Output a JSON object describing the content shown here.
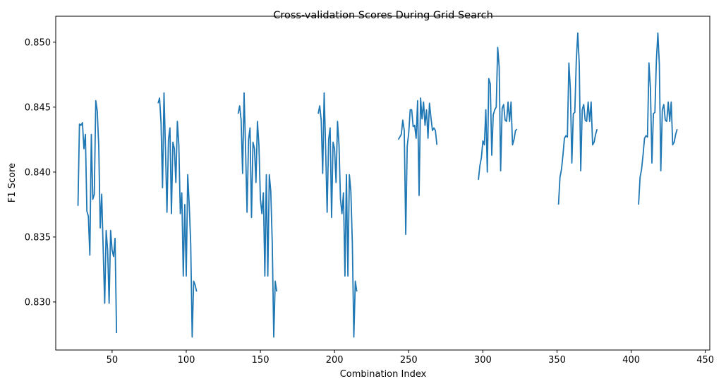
{
  "chart_data": {
    "type": "line",
    "title": "Cross-validation Scores During Grid Search",
    "xlabel": "Combination Index",
    "ylabel": "F1 Score",
    "xlim": [
      12,
      453
    ],
    "ylim": [
      0.8263,
      0.852
    ],
    "xticks": [
      50,
      100,
      150,
      200,
      250,
      300,
      350,
      400,
      450
    ],
    "yticks": [
      0.83,
      0.835,
      0.84,
      0.845,
      0.85
    ],
    "grid": false,
    "legend": "none",
    "colors": {
      "line": "#1f77b4"
    },
    "series": [
      {
        "segments": [
          {
            "x": [
              27,
              28,
              29,
              30,
              31,
              32,
              33,
              34,
              35,
              36,
              37,
              38,
              39,
              40,
              41,
              42,
              43,
              44,
              45,
              46,
              47,
              48,
              49,
              50,
              51,
              52,
              53
            ],
            "y": [
              0.8374,
              0.8437,
              0.8436,
              0.8438,
              0.8418,
              0.8429,
              0.837,
              0.8366,
              0.8336,
              0.8429,
              0.8379,
              0.8383,
              0.8455,
              0.8447,
              0.842,
              0.8357,
              0.8383,
              0.834,
              0.8299,
              0.8355,
              0.834,
              0.8299,
              0.8355,
              0.834,
              0.8335,
              0.8349,
              0.8276
            ]
          },
          {
            "x": [
              81,
              82,
              83,
              84,
              85,
              86,
              87,
              88,
              89,
              90,
              91,
              92,
              93,
              94,
              95,
              96,
              97,
              98,
              99,
              100,
              101,
              102,
              103,
              104,
              105,
              106,
              107
            ],
            "y": [
              0.8453,
              0.8457,
              0.8438,
              0.8388,
              0.8461,
              0.8418,
              0.8369,
              0.8425,
              0.8434,
              0.8368,
              0.8423,
              0.8418,
              0.8392,
              0.8439,
              0.8421,
              0.8368,
              0.8384,
              0.832,
              0.8375,
              0.832,
              0.8398,
              0.8375,
              0.8345,
              0.8273,
              0.8316,
              0.8313,
              0.8308
            ]
          },
          {
            "x": [
              135,
              136,
              137,
              138,
              139,
              140,
              141,
              142,
              143,
              144,
              145,
              146,
              147,
              148,
              149,
              150,
              151,
              152,
              153,
              154,
              155,
              156,
              157,
              158,
              159,
              160,
              161
            ],
            "y": [
              0.8445,
              0.8451,
              0.844,
              0.8399,
              0.8461,
              0.8418,
              0.8369,
              0.8425,
              0.8434,
              0.8365,
              0.8423,
              0.8418,
              0.8392,
              0.8439,
              0.8421,
              0.8379,
              0.8368,
              0.8384,
              0.832,
              0.8398,
              0.832,
              0.8398,
              0.8385,
              0.8345,
              0.8273,
              0.8316,
              0.8308
            ]
          },
          {
            "x": [
              189,
              190,
              191,
              192,
              193,
              194,
              195,
              196,
              197,
              198,
              199,
              200,
              201,
              202,
              203,
              204,
              205,
              206,
              207,
              208,
              209,
              210,
              211,
              212,
              213,
              214,
              215
            ],
            "y": [
              0.8445,
              0.8451,
              0.844,
              0.8399,
              0.8461,
              0.8418,
              0.8369,
              0.8425,
              0.8434,
              0.8365,
              0.8423,
              0.8418,
              0.8392,
              0.8439,
              0.8421,
              0.8379,
              0.8368,
              0.8384,
              0.832,
              0.8398,
              0.832,
              0.8398,
              0.8385,
              0.8345,
              0.8273,
              0.8316,
              0.8308
            ]
          },
          {
            "x": [
              243,
              244,
              245,
              246,
              247,
              248,
              249,
              250,
              251,
              252,
              253,
              254,
              255,
              256,
              257,
              258,
              259,
              260,
              261,
              262,
              263,
              264,
              265,
              266,
              267,
              268,
              269
            ],
            "y": [
              0.8425,
              0.8427,
              0.8429,
              0.844,
              0.8432,
              0.8352,
              0.842,
              0.843,
              0.8448,
              0.8448,
              0.8435,
              0.8436,
              0.8426,
              0.8455,
              0.8382,
              0.8457,
              0.8441,
              0.8454,
              0.8436,
              0.8448,
              0.8426,
              0.8453,
              0.8442,
              0.8432,
              0.8434,
              0.8432,
              0.8421
            ]
          },
          {
            "x": [
              297,
              298,
              299,
              300,
              301,
              302,
              303,
              304,
              305,
              306,
              307,
              308,
              309,
              310,
              311,
              312,
              313,
              314,
              315,
              316,
              317,
              318,
              319,
              320,
              321,
              322,
              323
            ],
            "y": [
              0.8394,
              0.8405,
              0.8411,
              0.8424,
              0.8421,
              0.8448,
              0.84,
              0.8472,
              0.8468,
              0.8413,
              0.8444,
              0.8448,
              0.845,
              0.8496,
              0.8481,
              0.8401,
              0.8449,
              0.8452,
              0.844,
              0.8439,
              0.8454,
              0.8439,
              0.8454,
              0.8421,
              0.8425,
              0.8432,
              0.8433
            ]
          },
          {
            "x": [
              351,
              352,
              353,
              354,
              355,
              356,
              357,
              358,
              359,
              360,
              361,
              362,
              363,
              364,
              365,
              366,
              367,
              368,
              369,
              370,
              371,
              372,
              373,
              374,
              375,
              376,
              377
            ],
            "y": [
              0.8375,
              0.8396,
              0.8402,
              0.8413,
              0.8426,
              0.8428,
              0.8427,
              0.8484,
              0.8464,
              0.8407,
              0.8445,
              0.8446,
              0.8486,
              0.8507,
              0.8483,
              0.8401,
              0.8448,
              0.8452,
              0.844,
              0.8439,
              0.8454,
              0.8439,
              0.8454,
              0.8421,
              0.8423,
              0.8429,
              0.8433
            ]
          },
          {
            "x": [
              405,
              406,
              407,
              408,
              409,
              410,
              411,
              412,
              413,
              414,
              415,
              416,
              417,
              418,
              419,
              420,
              421,
              422,
              423,
              424,
              425,
              426,
              427,
              428,
              429,
              430,
              431
            ],
            "y": [
              0.8375,
              0.8396,
              0.8402,
              0.8413,
              0.8426,
              0.8428,
              0.8427,
              0.8484,
              0.8464,
              0.8407,
              0.8445,
              0.8446,
              0.8486,
              0.8507,
              0.8483,
              0.8401,
              0.8448,
              0.8452,
              0.844,
              0.8439,
              0.8454,
              0.8439,
              0.8454,
              0.8421,
              0.8423,
              0.8429,
              0.8433
            ]
          }
        ]
      }
    ]
  }
}
